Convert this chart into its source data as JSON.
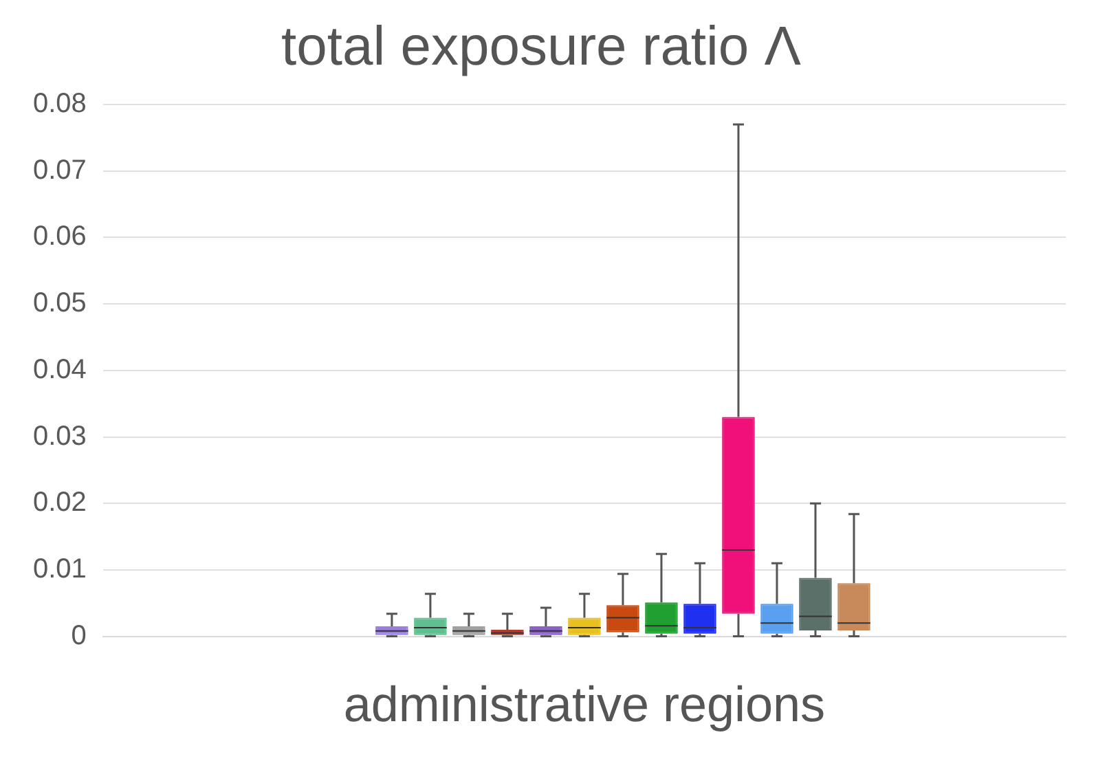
{
  "chart_data": {
    "type": "box",
    "title": "total exposure ratio Λ",
    "xlabel": "administrative regions",
    "categories": [
      null,
      null,
      null,
      null,
      null,
      null,
      null,
      null,
      null,
      null,
      null,
      null,
      null,
      null,
      null,
      null,
      null,
      null,
      null,
      null,
      null,
      null,
      null,
      null,
      null
    ],
    "boxes": [
      null,
      null,
      null,
      null,
      null,
      null,
      null,
      {
        "low": 0,
        "q1": 0.0002,
        "median": 0.0008,
        "q3": 0.0015,
        "high": 0.0034
      },
      {
        "low": 0,
        "q1": 0.0002,
        "median": 0.0013,
        "q3": 0.0028,
        "high": 0.0064
      },
      {
        "low": 0,
        "q1": 0.0002,
        "median": 0.0008,
        "q3": 0.0015,
        "high": 0.0034
      },
      {
        "low": 0,
        "q1": 0.0002,
        "median": 0.0005,
        "q3": 0.001,
        "high": 0.0034
      },
      {
        "low": 0,
        "q1": 0.0002,
        "median": 0.0008,
        "q3": 0.0015,
        "high": 0.0043
      },
      {
        "low": 0,
        "q1": 0.0002,
        "median": 0.0013,
        "q3": 0.0028,
        "high": 0.0064
      },
      {
        "low": 0,
        "q1": 0.0006,
        "median": 0.0028,
        "q3": 0.0047,
        "high": 0.0094
      },
      {
        "low": 0,
        "q1": 0.0004,
        "median": 0.0016,
        "q3": 0.0051,
        "high": 0.0124
      },
      {
        "low": 0,
        "q1": 0.0004,
        "median": 0.0013,
        "q3": 0.0049,
        "high": 0.011
      },
      {
        "low": 0,
        "q1": 0.0034,
        "median": 0.013,
        "q3": 0.033,
        "high": 0.077
      },
      {
        "low": 0,
        "q1": 0.0004,
        "median": 0.002,
        "q3": 0.0049,
        "high": 0.011
      },
      {
        "low": 0,
        "q1": 0.0009,
        "median": 0.003,
        "q3": 0.0088,
        "high": 0.02
      },
      {
        "low": 0,
        "q1": 0.0009,
        "median": 0.002,
        "q3": 0.008,
        "high": 0.0184
      },
      null,
      null,
      null,
      null,
      null
    ],
    "colors": [
      "#9b7fe0",
      "#9b7fe0",
      "#9b7fe0",
      "#9b7fe0",
      "#9b7fe0",
      "#9b7fe0",
      "#9b7fe0",
      "#9b7fe0",
      "#5fbf8f",
      "#a0a0a0",
      "#b03a2e",
      "#8a5fc8",
      "#e8c020",
      "#c84a10",
      "#20a030",
      "#2030f0",
      "#f0107a",
      "#5aa0f0",
      "#5a7068",
      "#c88a5a",
      "#c88a5a",
      "#c88a5a",
      "#c88a5a",
      "#c88a5a",
      "#c88a5a"
    ],
    "ylim": [
      0,
      0.08
    ],
    "yticks": [
      0,
      0.01,
      0.02,
      0.03,
      0.04,
      0.05,
      0.06,
      0.07,
      0.08
    ],
    "grid": "y",
    "legend": false
  }
}
